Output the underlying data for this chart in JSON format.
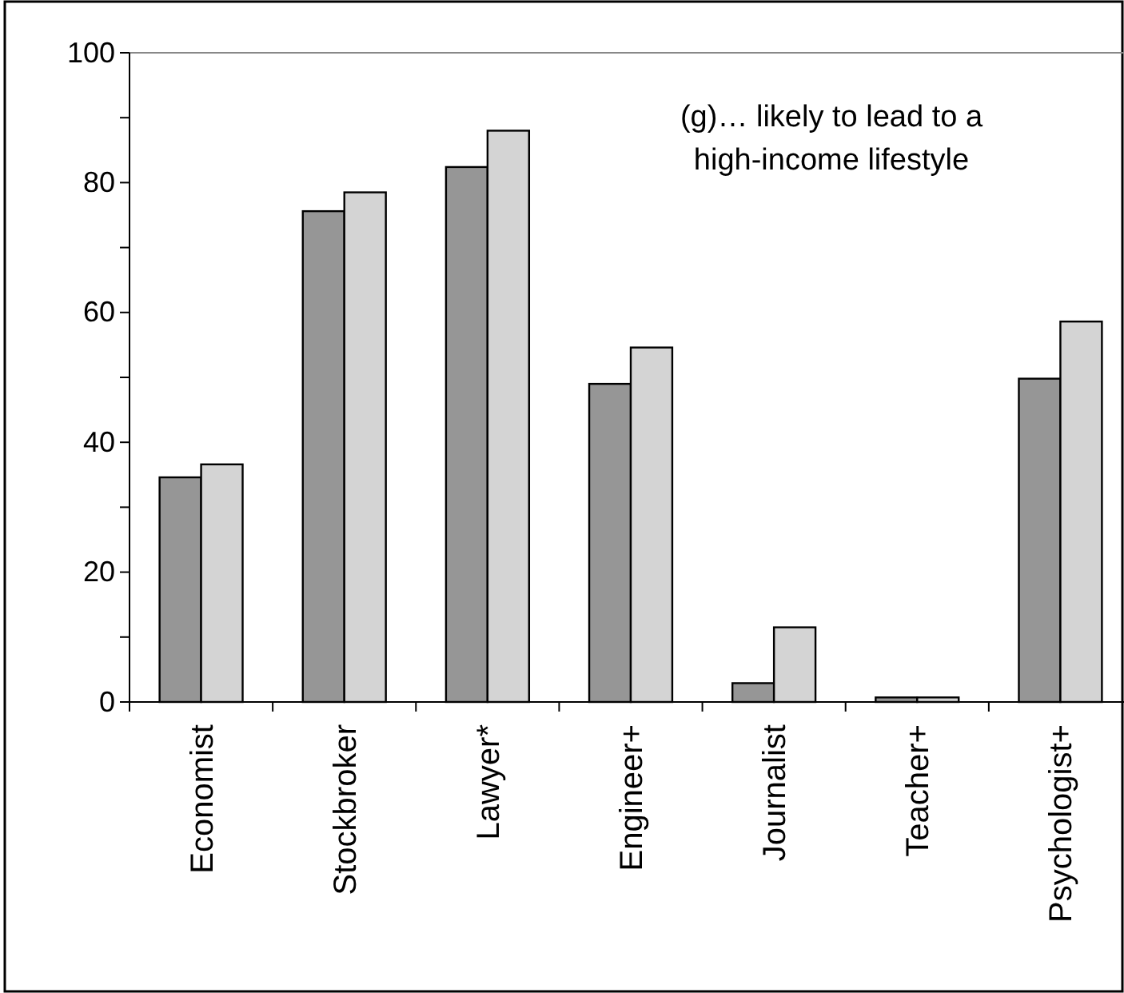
{
  "chart_data": {
    "type": "bar",
    "title": "(g)… likely to lead to a high-income lifestyle",
    "categories": [
      "Economist",
      "Stockbroker",
      "Lawyer*",
      "Engineer+",
      "Journalist",
      "Teacher+",
      "Psychologist+"
    ],
    "series": [
      {
        "color": "#969696",
        "values": [
          34.6,
          75.6,
          82.4,
          49.0,
          2.9,
          0.7,
          49.8
        ]
      },
      {
        "color": "#d4d4d4",
        "values": [
          36.6,
          78.5,
          88.0,
          54.6,
          11.5,
          0.7,
          58.6
        ]
      }
    ],
    "ylim": [
      0,
      100
    ],
    "yticks": [
      0,
      {
        "value": 10,
        "label": null
      },
      20,
      {
        "value": 30,
        "label": null
      },
      40,
      {
        "value": 50,
        "label": null
      },
      60,
      {
        "value": 70,
        "label": null
      },
      80,
      {
        "value": 90,
        "label": null
      },
      100
    ]
  }
}
